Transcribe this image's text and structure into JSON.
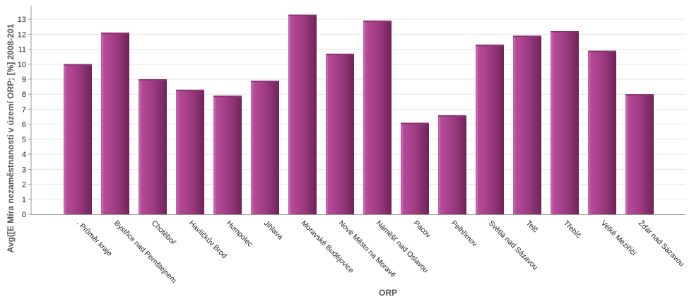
{
  "chart_data": {
    "type": "bar",
    "title": "",
    "xlabel": "ORP",
    "ylabel": "Avg([E Míra nezaměstnanosti v území ORP; [%] 2008-201",
    "ylim": [
      0,
      13.9
    ],
    "yticks": [
      0,
      1,
      2,
      3,
      4,
      5,
      6,
      7,
      8,
      9,
      10,
      11,
      12,
      13
    ],
    "grid": true,
    "legend": "none",
    "bar_color": "#9c3a80",
    "categories": [
      ". Průměr kraje",
      "Bystřice nad Pernštejnem",
      "Chotěboř",
      "Havlíčkův Brod",
      "Humpolec",
      "Jihlava",
      "Moravské Budějovice",
      "Nové Město na Moravě",
      "Náměšť nad Oslavou",
      "Pacov",
      "Pelhřimov",
      "Světlá nad Sázavou",
      "Telč",
      "Třebíč",
      "Velké Meziříčí",
      "Žďár nad Sázavou"
    ],
    "values": [
      10.0,
      12.1,
      9.0,
      8.3,
      7.9,
      8.9,
      13.3,
      10.7,
      12.9,
      6.1,
      6.6,
      11.3,
      11.9,
      12.2,
      10.9,
      8.0
    ]
  }
}
